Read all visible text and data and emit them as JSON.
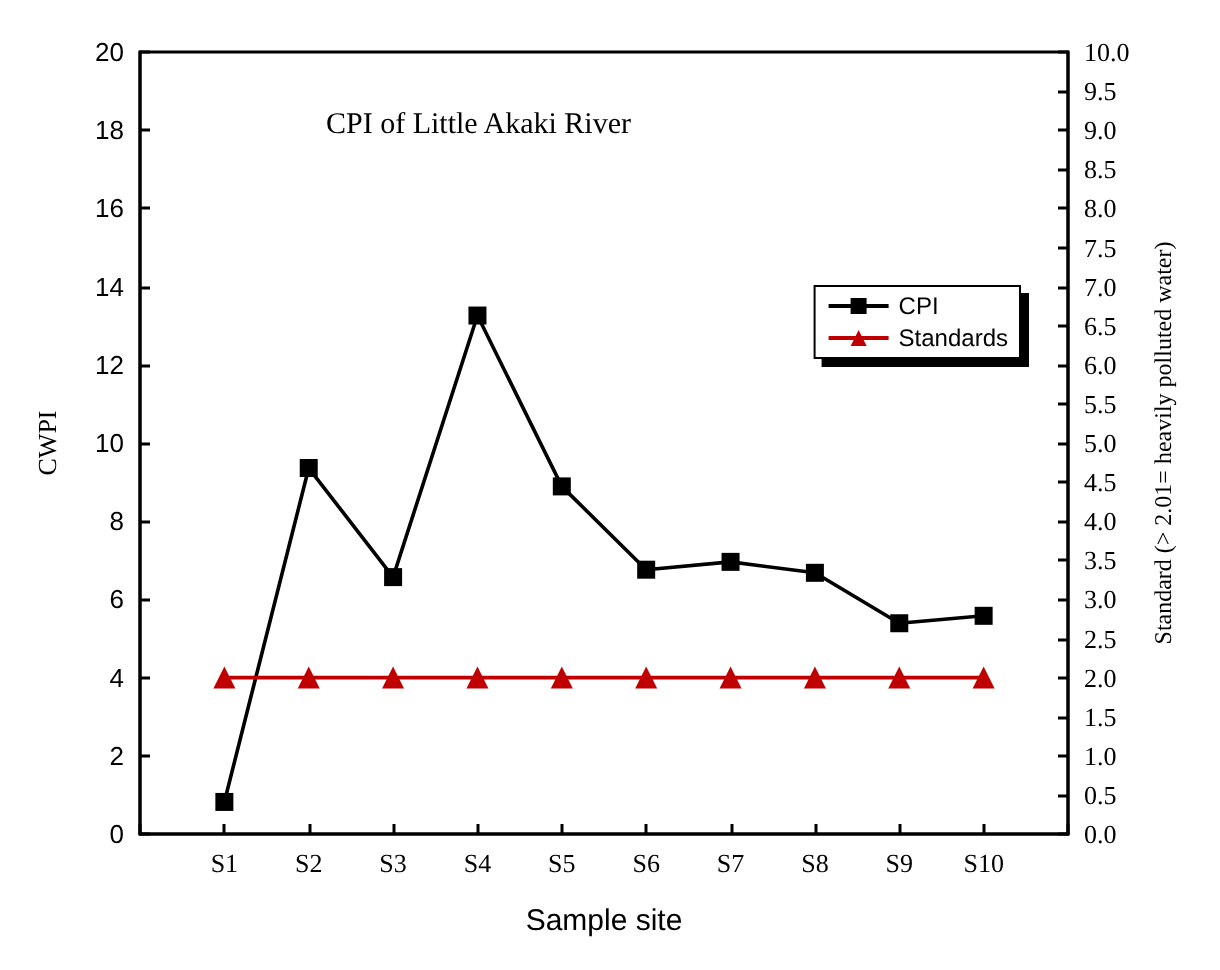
{
  "chart_data": {
    "type": "line",
    "title": "CPI of Little Akaki River",
    "xlabel": "Sample site",
    "ylabel": "CWPI",
    "y2label": "Standard (> 2.01= heavily polluted water)",
    "categories": [
      "S1",
      "S2",
      "S3",
      "S4",
      "S5",
      "S6",
      "S7",
      "S8",
      "S9",
      "S10"
    ],
    "series": [
      {
        "name": "CPI",
        "color": "#000000",
        "marker": "square",
        "values": [
          0.82,
          9.36,
          6.57,
          13.26,
          8.89,
          6.76,
          6.96,
          6.68,
          5.39,
          5.58
        ]
      },
      {
        "name": "Standards",
        "color": "#c00000",
        "marker": "triangle",
        "axis": "y2",
        "values": [
          2.0,
          2.0,
          2.0,
          2.0,
          2.0,
          2.0,
          2.0,
          2.0,
          2.0,
          2.0
        ]
      }
    ],
    "ylim": [
      0,
      20
    ],
    "yticks": [
      0,
      2,
      4,
      6,
      8,
      10,
      12,
      14,
      16,
      18,
      20
    ],
    "y2lim": [
      0,
      10
    ],
    "y2ticks": [
      {
        "value": 0,
        "label": "0.0"
      },
      {
        "value": 0.5,
        "label": "0.5"
      },
      {
        "value": 1,
        "label": "1.0"
      },
      {
        "value": 1.5,
        "label": "1.5"
      },
      {
        "value": 2,
        "label": "2.0"
      },
      {
        "value": 2.5,
        "label": "2.5"
      },
      {
        "value": 3,
        "label": "3.0"
      },
      {
        "value": 3.5,
        "label": "3.5"
      },
      {
        "value": 4,
        "label": "4.0"
      },
      {
        "value": 4.5,
        "label": "4.5"
      },
      {
        "value": 5,
        "label": "5.0"
      },
      {
        "value": 5.5,
        "label": "5.5"
      },
      {
        "value": 6,
        "label": "6.0"
      },
      {
        "value": 6.5,
        "label": "6.5"
      },
      {
        "value": 7,
        "label": "7.0"
      },
      {
        "value": 7.5,
        "label": "7.5"
      },
      {
        "value": 8,
        "label": "8.0"
      },
      {
        "value": 8.5,
        "label": "8.5"
      },
      {
        "value": 9,
        "label": "9.0"
      },
      {
        "value": 9.5,
        "label": "9.5"
      },
      {
        "value": 10,
        "label": "10.0"
      }
    ],
    "grid": false,
    "legend": "right",
    "line_style": "solid"
  }
}
